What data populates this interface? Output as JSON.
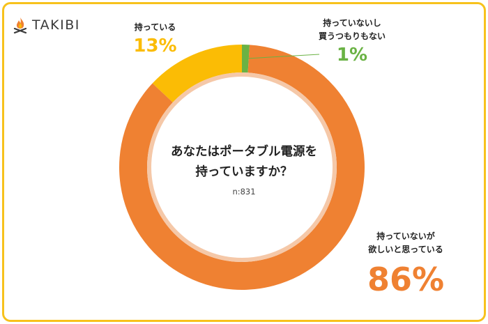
{
  "brand": {
    "name": "TAKIBI",
    "icon": "campfire-icon"
  },
  "chart_data": {
    "type": "pie",
    "style": "donut",
    "title": [
      "あなたはポータブル電源を",
      "持っていますか？"
    ],
    "sample": "n:831",
    "slices": [
      {
        "label": [
          "持っていないが",
          "欲しいと思っている"
        ],
        "value": 86,
        "display": "86%",
        "color": "#EF8132"
      },
      {
        "label": [
          "持っている"
        ],
        "value": 13,
        "display": "13%",
        "color": "#FBBC05"
      },
      {
        "label": [
          "持っていないし",
          "買うつもりもない"
        ],
        "value": 1,
        "display": "1%",
        "color": "#6AB244"
      }
    ]
  },
  "colors": {
    "frame": "#F7C21C",
    "inner_ring": "#F5C8A8"
  }
}
